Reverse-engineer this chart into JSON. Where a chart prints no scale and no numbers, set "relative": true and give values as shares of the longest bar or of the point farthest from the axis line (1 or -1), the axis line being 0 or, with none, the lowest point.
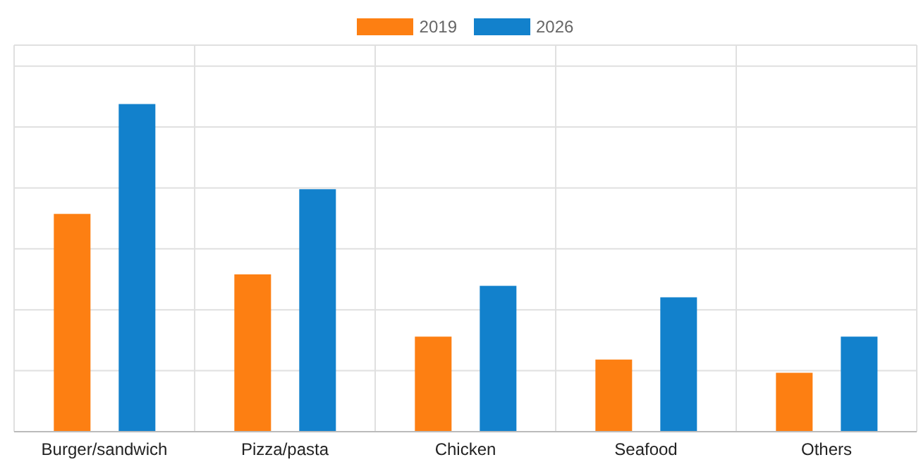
{
  "chart_data": {
    "type": "bar",
    "relative": true,
    "categories": [
      "Burger/sandwich",
      "Pizza/pasta",
      "Chicken",
      "Seafood",
      "Others"
    ],
    "series": [
      {
        "name": "2019",
        "color": "#fd7f12",
        "values": [
          0.665,
          0.48,
          0.29,
          0.22,
          0.18
        ]
      },
      {
        "name": "2026",
        "color": "#1281cc",
        "values": [
          1,
          0.74,
          0.445,
          0.41,
          0.29
        ]
      }
    ],
    "grid": true,
    "legend": "top"
  }
}
